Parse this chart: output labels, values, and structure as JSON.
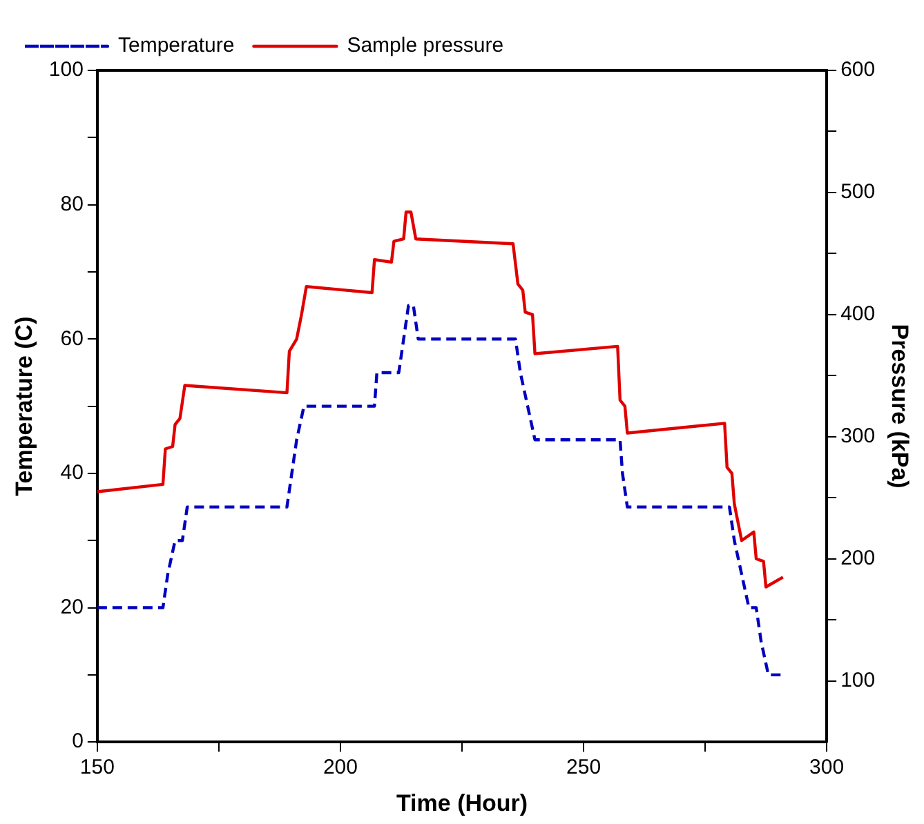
{
  "chart_data": {
    "type": "line",
    "xlabel": "Time (Hour)",
    "ylabel": "Temperature (C)",
    "y2label": "Pressure (kPa)",
    "xlim": [
      150,
      300
    ],
    "xticks": [
      150,
      {
        "value": 175,
        "label": null
      },
      200,
      {
        "value": 225,
        "label": null
      },
      250,
      {
        "value": 275,
        "label": null
      },
      300
    ],
    "ylim": [
      0,
      100
    ],
    "yticks": [
      0,
      {
        "value": 10,
        "label": null
      },
      20,
      {
        "value": 30,
        "label": null
      },
      40,
      {
        "value": 50,
        "label": null
      },
      60,
      {
        "value": 70,
        "label": null
      },
      80,
      {
        "value": 90,
        "label": null
      },
      100
    ],
    "y2lim": [
      50,
      600
    ],
    "y2ticks": [
      100,
      {
        "value": 150,
        "label": null
      },
      200,
      {
        "value": 250,
        "label": null
      },
      300,
      {
        "value": 350,
        "label": null
      },
      400,
      {
        "value": 450,
        "label": null
      },
      500,
      {
        "value": 550,
        "label": null
      },
      600
    ],
    "grid": false,
    "legend": "top left",
    "marker": "none",
    "series": [
      {
        "name": "Temperature",
        "color": "#0000c0",
        "line_style": "dashed",
        "x": [
          150,
          163.5,
          164.5,
          166,
          167.5,
          168.5,
          189,
          190,
          191,
          192.5,
          207,
          207.5,
          212,
          213,
          214,
          215,
          216,
          236,
          237,
          238.5,
          240,
          257.5,
          258,
          259,
          280,
          281,
          282.5,
          284,
          285.5,
          286.5,
          288,
          291
        ],
        "values": [
          20,
          20,
          25,
          30,
          30,
          35,
          35,
          40,
          45,
          50,
          50,
          55,
          55,
          60,
          65,
          65,
          60,
          60,
          55,
          50,
          45,
          45,
          40,
          35,
          35,
          30,
          25,
          20,
          20,
          15,
          10,
          10
        ]
      },
      {
        "name": "Sample pressure",
        "color": "#e00000",
        "line_style": "solid",
        "axis": "y2",
        "x": [
          150,
          163.5,
          164,
          165.5,
          166,
          167,
          168,
          189,
          189.5,
          191,
          192,
          193,
          206.5,
          207,
          210.5,
          211,
          213,
          213.5,
          214.5,
          215.5,
          235.5,
          236.5,
          237.5,
          238,
          239.5,
          240,
          257,
          257.5,
          258.5,
          259,
          279,
          279.5,
          280.5,
          281,
          282.5,
          285,
          285.5,
          287,
          287.5,
          291
        ],
        "values": [
          255,
          261,
          290,
          292,
          310,
          315,
          342,
          336,
          370,
          380,
          400,
          423,
          418,
          445,
          443,
          460,
          462,
          484,
          484,
          462,
          458,
          425,
          420,
          402,
          400,
          368,
          374,
          330,
          325,
          303,
          311,
          275,
          270,
          245,
          215,
          222,
          200,
          198,
          177,
          185
        ]
      }
    ]
  }
}
